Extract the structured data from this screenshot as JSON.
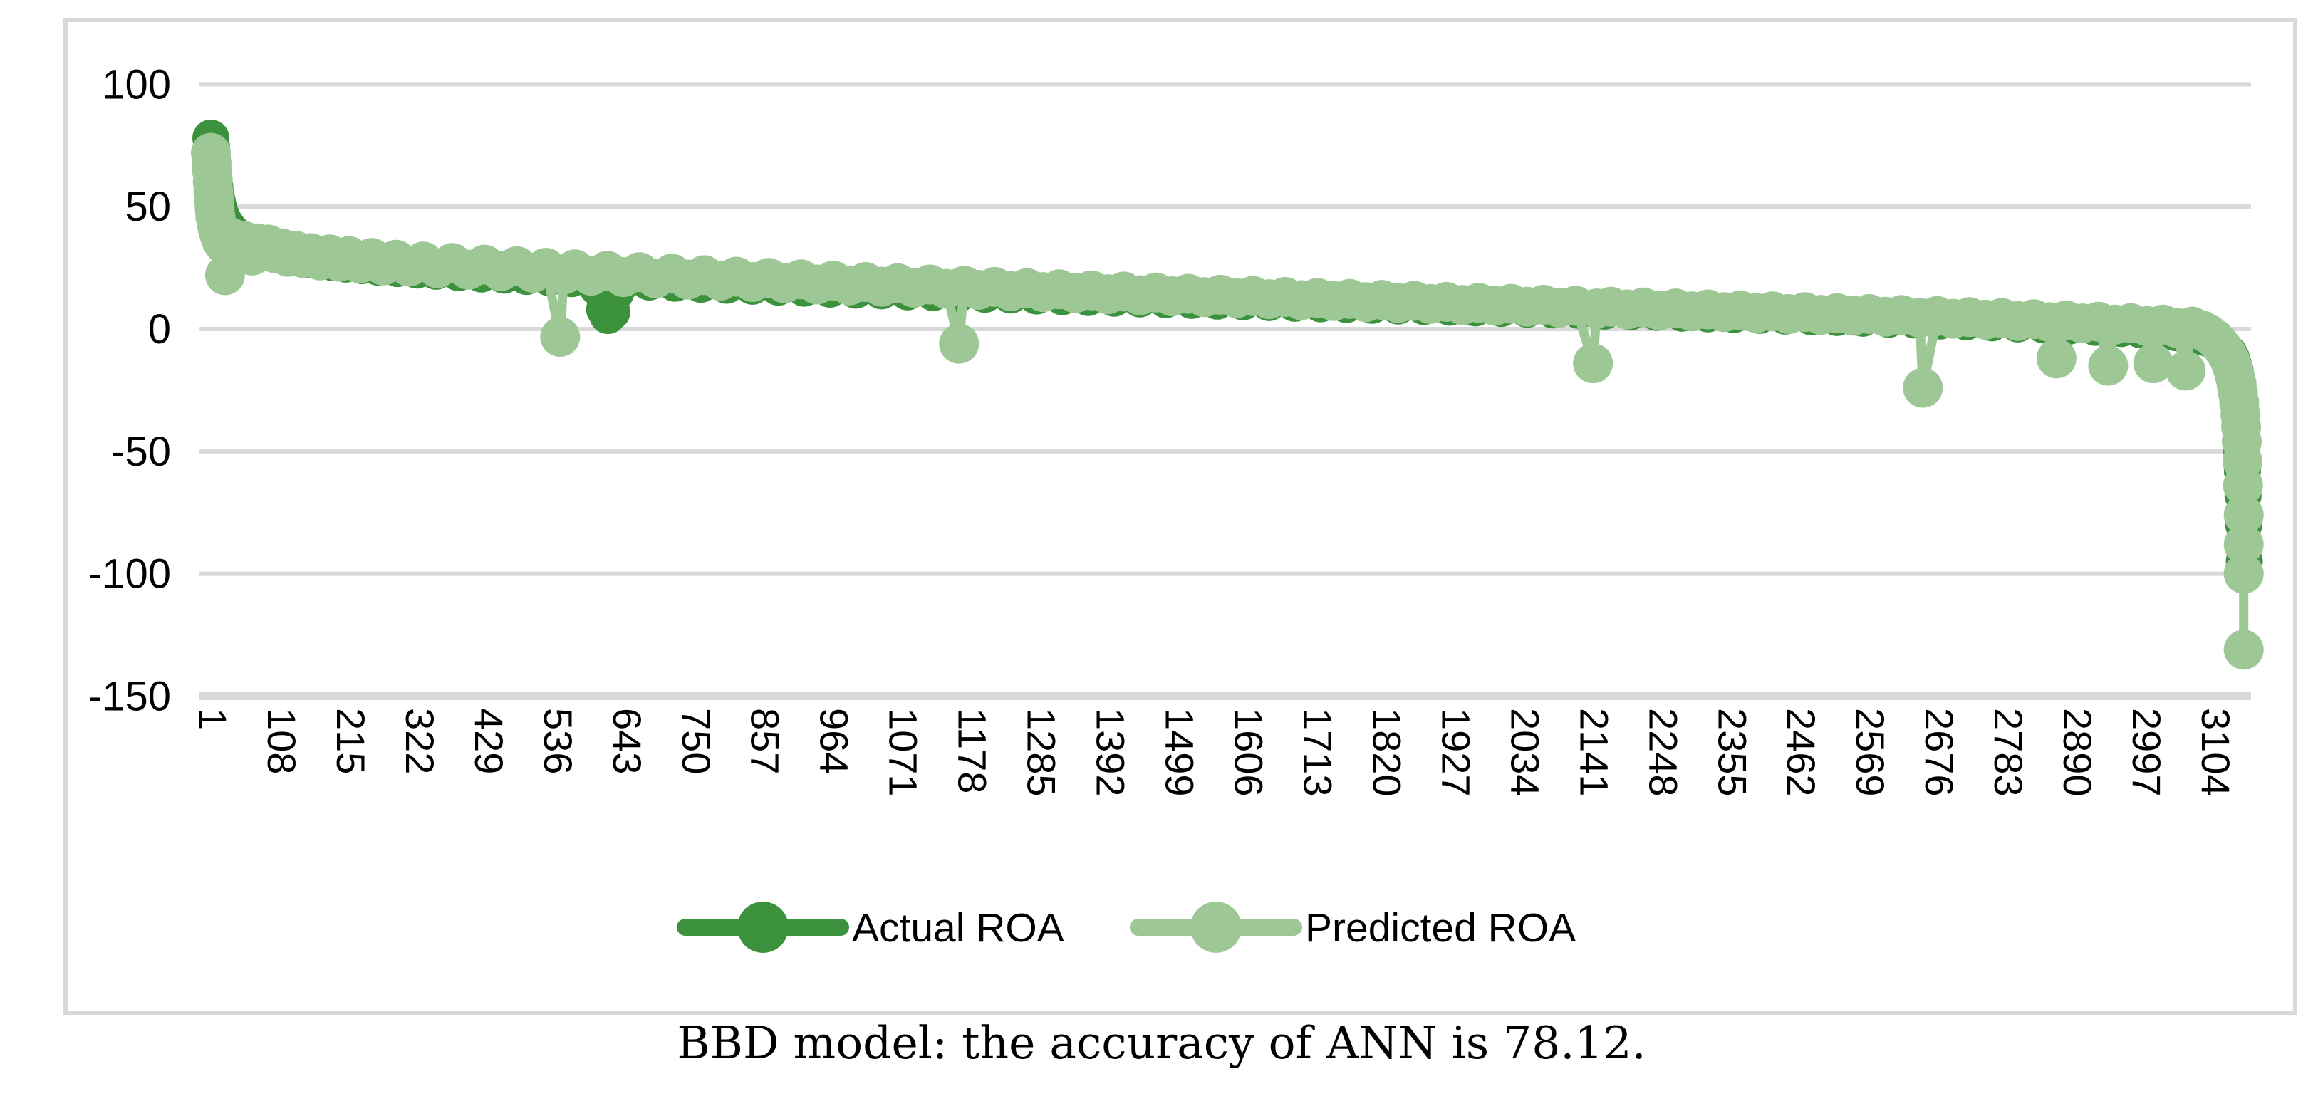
{
  "figure": {
    "caption": "BBD model: the accuracy of ANN is 78.12."
  },
  "chart_data": {
    "type": "line",
    "title": "",
    "xlabel": "",
    "ylabel": "",
    "ylim": [
      -150,
      100
    ],
    "xlim": [
      1,
      3160
    ],
    "grid": true,
    "legend_position": "bottom-center",
    "y_ticks": [
      100,
      50,
      0,
      -50,
      -100,
      -150
    ],
    "x_tick_labels": [
      "1",
      "108",
      "215",
      "322",
      "429",
      "536",
      "643",
      "750",
      "857",
      "964",
      "1071",
      "1178",
      "1285",
      "1392",
      "1499",
      "1606",
      "1713",
      "1820",
      "1927",
      "2034",
      "2141",
      "2248",
      "2355",
      "2462",
      "2569",
      "2676",
      "2783",
      "2890",
      "2997",
      "3104"
    ],
    "colors": {
      "actual": "#3C923C",
      "predicted": "#9DC896",
      "grid": "#D9D9D9",
      "border": "#D9D9D9",
      "text": "#000000"
    },
    "series": [
      {
        "name": "Actual ROA",
        "color": "#3C923C",
        "marker_radius": 26,
        "points": [
          [
            1,
            78
          ],
          [
            2,
            74.5
          ],
          [
            3,
            70.5
          ],
          [
            4,
            67
          ],
          [
            5,
            64
          ],
          [
            6,
            61
          ],
          [
            7,
            58.5
          ],
          [
            9,
            55
          ],
          [
            11,
            52
          ],
          [
            13,
            49.5
          ],
          [
            16,
            47
          ],
          [
            19,
            45
          ],
          [
            23,
            43.2
          ],
          [
            27,
            41.6
          ],
          [
            32,
            40
          ],
          [
            38,
            38.5
          ],
          [
            45,
            37
          ],
          [
            52,
            36
          ],
          [
            60,
            35
          ],
          [
            70,
            33.8
          ],
          [
            80,
            32.8
          ],
          [
            92,
            31.8
          ],
          [
            105,
            30.9
          ],
          [
            120,
            30
          ],
          [
            136,
            29.2
          ],
          [
            152,
            28.5
          ],
          [
            170,
            27.8
          ],
          [
            190,
            27.1
          ],
          [
            210,
            26.5
          ],
          [
            235,
            25.9
          ],
          [
            260,
            25.3
          ],
          [
            290,
            24.7
          ],
          [
            320,
            24.1
          ],
          [
            350,
            23.6
          ],
          [
            385,
            23
          ],
          [
            420,
            22.5
          ],
          [
            455,
            22
          ],
          [
            490,
            21.5
          ],
          [
            525,
            21
          ],
          [
            560,
            20.6
          ],
          [
            600,
            17
          ],
          [
            605,
            16
          ],
          [
            611,
            8
          ],
          [
            616,
            5.5
          ],
          [
            622,
            7
          ],
          [
            628,
            15
          ],
          [
            640,
            19.4
          ],
          [
            680,
            19.2
          ],
          [
            720,
            18.7
          ],
          [
            760,
            18.3
          ],
          [
            800,
            17.9
          ],
          [
            840,
            17.5
          ],
          [
            880,
            17.1
          ],
          [
            920,
            16.7
          ],
          [
            960,
            16.3
          ],
          [
            1000,
            15.9
          ],
          [
            1040,
            15.6
          ],
          [
            1080,
            15.2
          ],
          [
            1120,
            14.9
          ],
          [
            1160,
            14.5
          ],
          [
            1200,
            14.2
          ],
          [
            1240,
            13.9
          ],
          [
            1280,
            13.5
          ],
          [
            1320,
            13.2
          ],
          [
            1360,
            12.9
          ],
          [
            1400,
            12.6
          ],
          [
            1440,
            12.3
          ],
          [
            1480,
            12
          ],
          [
            1520,
            11.7
          ],
          [
            1560,
            11.4
          ],
          [
            1600,
            11.1
          ],
          [
            1640,
            10.8
          ],
          [
            1680,
            10.5
          ],
          [
            1720,
            10.3
          ],
          [
            1760,
            10
          ],
          [
            1800,
            9.7
          ],
          [
            1840,
            9.4
          ],
          [
            1880,
            9.2
          ],
          [
            1920,
            8.9
          ],
          [
            1960,
            8.6
          ],
          [
            2000,
            8.4
          ],
          [
            2040,
            8.1
          ],
          [
            2080,
            7.8
          ],
          [
            2120,
            7.6
          ],
          [
            2160,
            7.3
          ],
          [
            2200,
            7
          ],
          [
            2240,
            6.8
          ],
          [
            2280,
            6.5
          ],
          [
            2320,
            6.2
          ],
          [
            2360,
            5.9
          ],
          [
            2400,
            5.6
          ],
          [
            2440,
            5.3
          ],
          [
            2480,
            5
          ],
          [
            2520,
            4.7
          ],
          [
            2560,
            4.4
          ],
          [
            2600,
            4
          ],
          [
            2640,
            3.7
          ],
          [
            2680,
            3.3
          ],
          [
            2720,
            2.9
          ],
          [
            2760,
            2.5
          ],
          [
            2800,
            2.1
          ],
          [
            2840,
            1.7
          ],
          [
            2880,
            1.2
          ],
          [
            2920,
            0.7
          ],
          [
            2960,
            0.2
          ],
          [
            2990,
            -0.3
          ],
          [
            3020,
            -0.9
          ],
          [
            3045,
            -1.5
          ],
          [
            3065,
            -2.2
          ],
          [
            3082,
            -3
          ],
          [
            3096,
            -4
          ],
          [
            3106,
            -5.2
          ],
          [
            3114,
            -6.6
          ],
          [
            3121,
            -8.2
          ],
          [
            3127,
            -10
          ],
          [
            3131,
            -12
          ],
          [
            3134,
            -14.5
          ],
          [
            3137,
            -17.5
          ],
          [
            3139,
            -20.5
          ],
          [
            3141,
            -24
          ],
          [
            3143,
            -28
          ],
          [
            3144,
            -32
          ],
          [
            3145,
            -37
          ],
          [
            3146,
            -43
          ],
          [
            3147,
            -50
          ],
          [
            3148,
            -58
          ],
          [
            3149,
            -68
          ],
          [
            3150,
            -80
          ],
          [
            3151,
            -95
          ]
        ]
      },
      {
        "name": "Predicted ROA",
        "color": "#9DC896",
        "marker_radius": 28,
        "points": [
          [
            1,
            72
          ],
          [
            2,
            68
          ],
          [
            3,
            64.5
          ],
          [
            4,
            60
          ],
          [
            5,
            56
          ],
          [
            6,
            52.5
          ],
          [
            7,
            49
          ],
          [
            8,
            46
          ],
          [
            10,
            43
          ],
          [
            12,
            40.5
          ],
          [
            15,
            38
          ],
          [
            18,
            36
          ],
          [
            22,
            34.5
          ],
          [
            23,
            22
          ],
          [
            26,
            33.5
          ],
          [
            30,
            35
          ],
          [
            35,
            37
          ],
          [
            40,
            34
          ],
          [
            46,
            31
          ],
          [
            52,
            36
          ],
          [
            58,
            33
          ],
          [
            65,
            30
          ],
          [
            72,
            35
          ],
          [
            80,
            32
          ],
          [
            90,
            34.5
          ],
          [
            100,
            31
          ],
          [
            110,
            33
          ],
          [
            120,
            29.5
          ],
          [
            132,
            32
          ],
          [
            144,
            29
          ],
          [
            156,
            31
          ],
          [
            170,
            28
          ],
          [
            185,
            30.5
          ],
          [
            200,
            27.5
          ],
          [
            215,
            29.8
          ],
          [
            232,
            26.8
          ],
          [
            250,
            29
          ],
          [
            268,
            26
          ],
          [
            288,
            28.3
          ],
          [
            308,
            25.5
          ],
          [
            330,
            27.6
          ],
          [
            352,
            24.8
          ],
          [
            375,
            27
          ],
          [
            400,
            24.2
          ],
          [
            425,
            26.3
          ],
          [
            450,
            23.6
          ],
          [
            475,
            25.7
          ],
          [
            500,
            23
          ],
          [
            520,
            25
          ],
          [
            542,
            -3.2
          ],
          [
            548,
            22.3
          ],
          [
            565,
            24.4
          ],
          [
            590,
            21.8
          ],
          [
            615,
            23.8
          ],
          [
            640,
            21.2
          ],
          [
            665,
            23.2
          ],
          [
            690,
            20.7
          ],
          [
            715,
            22.6
          ],
          [
            740,
            20.2
          ],
          [
            765,
            22
          ],
          [
            790,
            19.7
          ],
          [
            815,
            21.4
          ],
          [
            840,
            19.2
          ],
          [
            865,
            20.9
          ],
          [
            890,
            18.7
          ],
          [
            915,
            20.3
          ],
          [
            940,
            18.2
          ],
          [
            965,
            19.8
          ],
          [
            990,
            17.8
          ],
          [
            1015,
            19.2
          ],
          [
            1040,
            17.3
          ],
          [
            1065,
            18.7
          ],
          [
            1090,
            16.9
          ],
          [
            1115,
            18.2
          ],
          [
            1140,
            16.4
          ],
          [
            1160,
            -6
          ],
          [
            1168,
            17.7
          ],
          [
            1190,
            16
          ],
          [
            1215,
            17.2
          ],
          [
            1240,
            15.5
          ],
          [
            1265,
            16.7
          ],
          [
            1290,
            15.1
          ],
          [
            1315,
            16.2
          ],
          [
            1340,
            14.7
          ],
          [
            1365,
            15.8
          ],
          [
            1390,
            14.2
          ],
          [
            1415,
            15.3
          ],
          [
            1440,
            13.8
          ],
          [
            1465,
            14.9
          ],
          [
            1490,
            13.4
          ],
          [
            1515,
            14.4
          ],
          [
            1540,
            13
          ],
          [
            1565,
            14
          ],
          [
            1590,
            12.6
          ],
          [
            1615,
            13.5
          ],
          [
            1640,
            12.2
          ],
          [
            1665,
            13.1
          ],
          [
            1690,
            11.8
          ],
          [
            1715,
            12.7
          ],
          [
            1740,
            11.4
          ],
          [
            1765,
            12.3
          ],
          [
            1790,
            11
          ],
          [
            1815,
            11.9
          ],
          [
            1840,
            10.6
          ],
          [
            1865,
            11.5
          ],
          [
            1890,
            10.2
          ],
          [
            1915,
            11.1
          ],
          [
            1940,
            9.8
          ],
          [
            1965,
            10.7
          ],
          [
            1990,
            9.5
          ],
          [
            2015,
            10.3
          ],
          [
            2040,
            9.1
          ],
          [
            2065,
            9.9
          ],
          [
            2090,
            8.7
          ],
          [
            2115,
            9.5
          ],
          [
            2142,
            -14
          ],
          [
            2148,
            8.4
          ],
          [
            2170,
            9.1
          ],
          [
            2195,
            8
          ],
          [
            2220,
            8.8
          ],
          [
            2245,
            7.6
          ],
          [
            2270,
            8.4
          ],
          [
            2295,
            7.2
          ],
          [
            2320,
            8
          ],
          [
            2345,
            6.9
          ],
          [
            2370,
            7.6
          ],
          [
            2395,
            6.5
          ],
          [
            2420,
            7.2
          ],
          [
            2445,
            6.1
          ],
          [
            2470,
            6.9
          ],
          [
            2495,
            5.8
          ],
          [
            2520,
            6.5
          ],
          [
            2545,
            5.4
          ],
          [
            2570,
            6.1
          ],
          [
            2595,
            5
          ],
          [
            2620,
            5.7
          ],
          [
            2648,
            4.6
          ],
          [
            2653,
            -24
          ],
          [
            2675,
            5.3
          ],
          [
            2700,
            4.2
          ],
          [
            2725,
            4.9
          ],
          [
            2750,
            3.8
          ],
          [
            2775,
            4.5
          ],
          [
            2800,
            3.3
          ],
          [
            2825,
            4
          ],
          [
            2850,
            2.8
          ],
          [
            2860,
            -12
          ],
          [
            2875,
            3.5
          ],
          [
            2900,
            2.3
          ],
          [
            2925,
            3
          ],
          [
            2940,
            -15
          ],
          [
            2950,
            1.8
          ],
          [
            2975,
            2.4
          ],
          [
            3000,
            1.2
          ],
          [
            3010,
            -14
          ],
          [
            3025,
            1.8
          ],
          [
            3045,
            0.5
          ],
          [
            3060,
            -17
          ],
          [
            3070,
            1
          ],
          [
            3085,
            -0.5
          ],
          [
            3095,
            -2
          ],
          [
            3105,
            -4
          ],
          [
            3112,
            -6
          ],
          [
            3118,
            -8
          ],
          [
            3124,
            -10.5
          ],
          [
            3129,
            -13
          ],
          [
            3133,
            -16
          ],
          [
            3136,
            -19
          ],
          [
            3139,
            -22.5
          ],
          [
            3141,
            -26
          ],
          [
            3143,
            -30
          ],
          [
            3145,
            -35
          ],
          [
            3146,
            -40
          ],
          [
            3147,
            -46
          ],
          [
            3148,
            -54
          ],
          [
            3149,
            -64
          ],
          [
            3150,
            -76
          ],
          [
            3150,
            -88
          ],
          [
            3150,
            -100
          ],
          [
            3150,
            -131
          ]
        ]
      }
    ]
  }
}
